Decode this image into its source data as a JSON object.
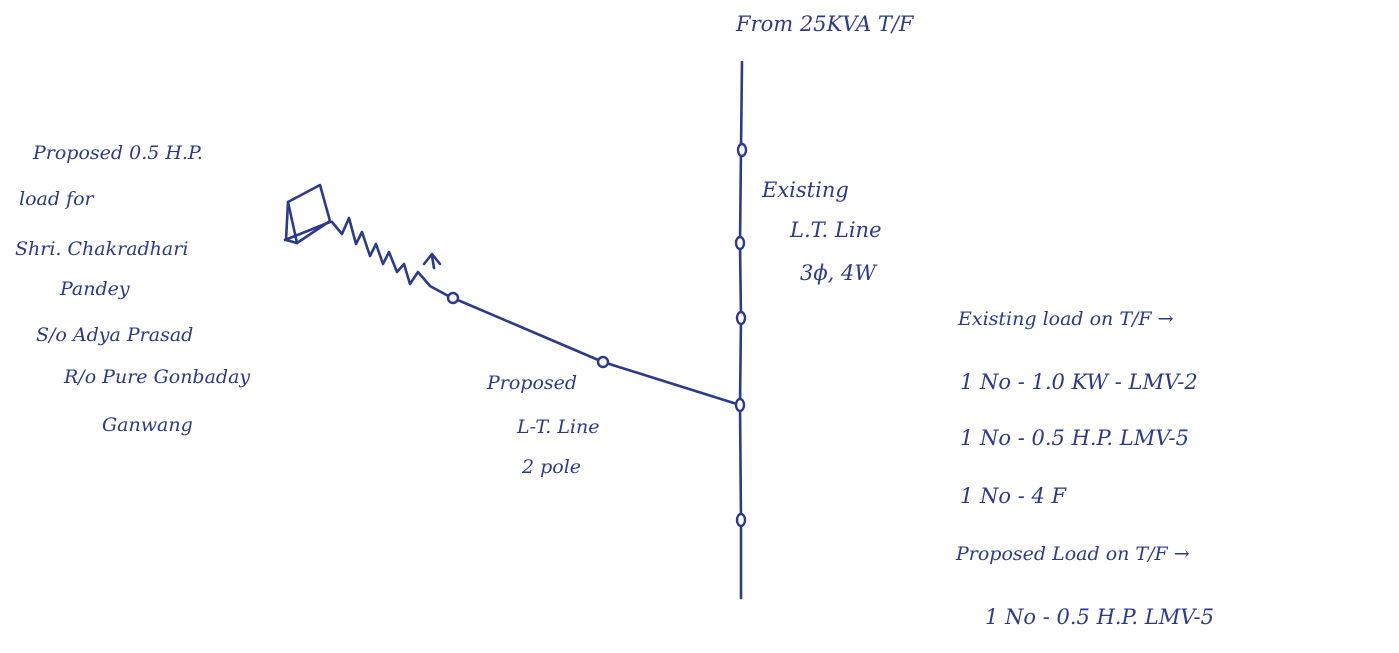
{
  "source_label": "From 25KVA T/F",
  "existing_line": {
    "line1": "Existing",
    "line2": "L.T. Line",
    "line3": "3ϕ, 4W"
  },
  "proposed_line": {
    "line1": "Proposed",
    "line2": "L-T. Line",
    "line3": "2 pole"
  },
  "proposed_load": {
    "line1": "Proposed 0.5 H.P.",
    "line2": "load for",
    "line3": "Shri. Chakradhari",
    "line4": "Pandey",
    "line5": "S/o Adya Prasad",
    "line6": "R/o Pure Gonbaday",
    "line7": "Ganwang"
  },
  "existing_load": {
    "heading": "Existing load on T/F →",
    "items": [
      "1 No - 1.0 KW - LMV-2",
      "1 No - 0.5 H.P. LMV-5",
      "1 No - 4 F"
    ]
  },
  "proposed_load_on_tf": {
    "heading": "Proposed Load on T/F →",
    "items": [
      "1 No - 0.5 H.P. LMV-5"
    ]
  },
  "colors": {
    "ink": "#2b3a8c"
  }
}
